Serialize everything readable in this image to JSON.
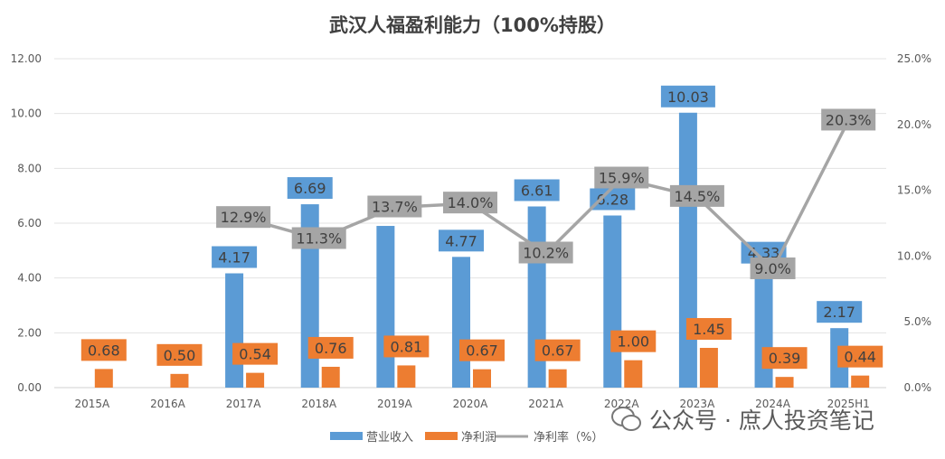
{
  "chart_data": {
    "type": "bar+line",
    "title": "武汉人福盈利能力（100%持股）",
    "categories": [
      "2015A",
      "2016A",
      "2017A",
      "2018A",
      "2019A",
      "2020A",
      "2021A",
      "2022A",
      "2023A",
      "2024A",
      "2025H1"
    ],
    "series": [
      {
        "name": "营业收入",
        "type": "bar",
        "axis": "left",
        "color": "#5B9BD5",
        "values": [
          null,
          null,
          4.17,
          6.69,
          5.9,
          4.77,
          6.61,
          6.28,
          10.03,
          4.33,
          2.17
        ],
        "labels": [
          "",
          "",
          "4.17",
          "6.69",
          "",
          "4.77",
          "6.61",
          "6.28",
          "10.03",
          "4.33",
          "2.17"
        ]
      },
      {
        "name": "净利润",
        "type": "bar",
        "axis": "left",
        "color": "#ED7D31",
        "values": [
          0.68,
          0.5,
          0.54,
          0.76,
          0.81,
          0.67,
          0.67,
          1.0,
          1.45,
          0.39,
          0.44
        ],
        "labels": [
          "0.68",
          "0.50",
          "0.54",
          "0.76",
          "0.81",
          "0.67",
          "0.67",
          "1.00",
          "1.45",
          "0.39",
          "0.44"
        ]
      },
      {
        "name": "净利率（%）",
        "type": "line",
        "axis": "right",
        "color": "#A5A5A5",
        "values": [
          null,
          null,
          12.9,
          11.3,
          13.7,
          14.0,
          10.2,
          15.9,
          14.5,
          9.0,
          20.3
        ],
        "labels": [
          "",
          "",
          "12.9%",
          "11.3%",
          "13.7%",
          "14.0%",
          "10.2%",
          "15.9%",
          "14.5%",
          "9.0%",
          "20.3%"
        ]
      }
    ],
    "yleft": {
      "lim": [
        0,
        12
      ],
      "ticks": [
        "0.00",
        "2.00",
        "4.00",
        "6.00",
        "8.00",
        "10.00",
        "12.00"
      ]
    },
    "yright": {
      "lim": [
        0,
        25
      ],
      "ticks": [
        "0.0%",
        "5.0%",
        "10.0%",
        "15.0%",
        "20.0%",
        "25.0%"
      ]
    },
    "grid": true,
    "legend": "bottom"
  },
  "watermark": "公众号 · 庶人投资笔记"
}
